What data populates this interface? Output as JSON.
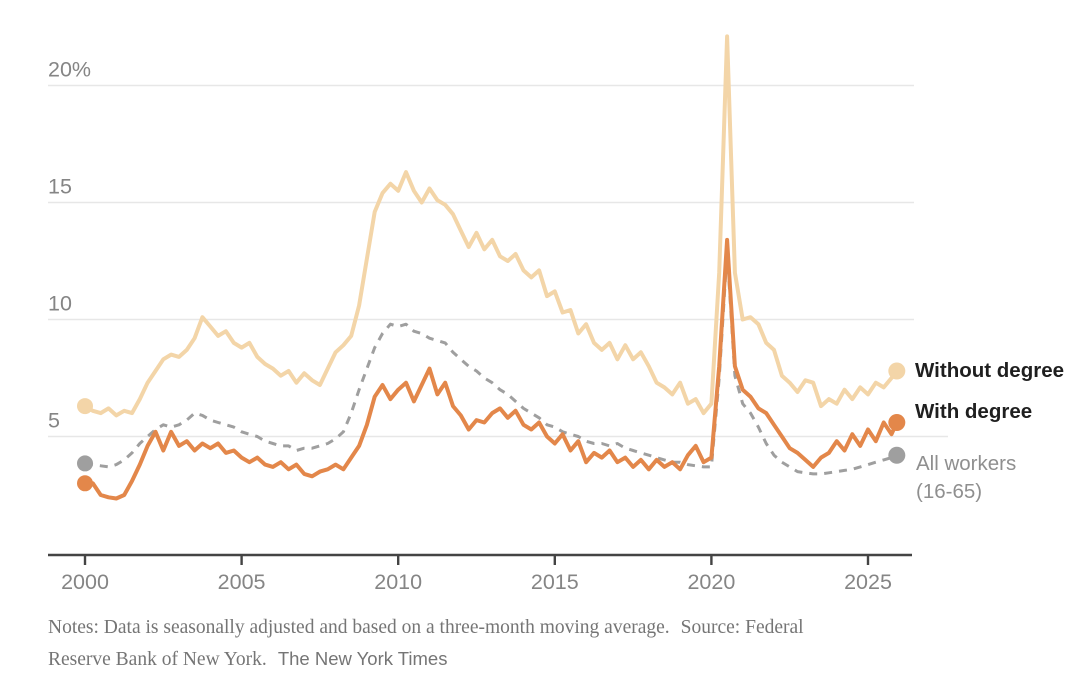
{
  "chart_data": {
    "type": "line",
    "title": "",
    "y_unit": "%",
    "grid": "horizontal",
    "legend_position": "right",
    "x_range": [
      2000,
      2025.92
    ],
    "y_range": [
      0,
      22.5
    ],
    "x_ticks": [
      {
        "value": 2000,
        "label": "2000"
      },
      {
        "value": 2005,
        "label": "2005"
      },
      {
        "value": 2010,
        "label": "2010"
      },
      {
        "value": 2015,
        "label": "2015"
      },
      {
        "value": 2020,
        "label": "2020"
      },
      {
        "value": 2025,
        "label": "2025"
      }
    ],
    "y_ticks": [
      {
        "value": 5,
        "label": "5"
      },
      {
        "value": 10,
        "label": "10"
      },
      {
        "value": 15,
        "label": "15"
      },
      {
        "value": 20,
        "label": "20%"
      }
    ],
    "x": [
      2000,
      2000.25,
      2000.5,
      2000.75,
      2001,
      2001.25,
      2001.5,
      2001.75,
      2002,
      2002.25,
      2002.5,
      2002.75,
      2003,
      2003.25,
      2003.5,
      2003.75,
      2004,
      2004.25,
      2004.5,
      2004.75,
      2005,
      2005.25,
      2005.5,
      2005.75,
      2006,
      2006.25,
      2006.5,
      2006.75,
      2007,
      2007.25,
      2007.5,
      2007.75,
      2008,
      2008.25,
      2008.5,
      2008.75,
      2009,
      2009.25,
      2009.5,
      2009.75,
      2010,
      2010.25,
      2010.5,
      2010.75,
      2011,
      2011.25,
      2011.5,
      2011.75,
      2012,
      2012.25,
      2012.5,
      2012.75,
      2013,
      2013.25,
      2013.5,
      2013.75,
      2014,
      2014.25,
      2014.5,
      2014.75,
      2015,
      2015.25,
      2015.5,
      2015.75,
      2016,
      2016.25,
      2016.5,
      2016.75,
      2017,
      2017.25,
      2017.5,
      2017.75,
      2018,
      2018.25,
      2018.5,
      2018.75,
      2019,
      2019.25,
      2019.5,
      2019.75,
      2020,
      2020.25,
      2020.5,
      2020.75,
      2021,
      2021.25,
      2021.5,
      2021.75,
      2022,
      2022.25,
      2022.5,
      2022.75,
      2023,
      2023.25,
      2023.5,
      2023.75,
      2024,
      2024.25,
      2024.5,
      2024.75,
      2025,
      2025.25,
      2025.5,
      2025.75,
      2025.92
    ],
    "series": [
      {
        "name": "Without degree",
        "legend_lines": [
          "Without degree"
        ],
        "color": "#f3d5a8",
        "line_style": "solid",
        "line_width": 4,
        "values": [
          6.3,
          6.1,
          6.0,
          6.2,
          5.9,
          6.1,
          6.0,
          6.6,
          7.3,
          7.8,
          8.3,
          8.5,
          8.4,
          8.7,
          9.2,
          10.1,
          9.7,
          9.3,
          9.5,
          9.0,
          8.8,
          9.0,
          8.4,
          8.1,
          7.9,
          7.6,
          7.8,
          7.3,
          7.7,
          7.4,
          7.2,
          7.9,
          8.6,
          8.9,
          9.3,
          10.6,
          12.6,
          14.6,
          15.4,
          15.8,
          15.5,
          16.3,
          15.5,
          15.0,
          15.6,
          15.1,
          14.9,
          14.5,
          13.8,
          13.1,
          13.7,
          13.0,
          13.4,
          12.7,
          12.5,
          12.8,
          12.1,
          11.8,
          12.1,
          11.0,
          11.2,
          10.3,
          10.4,
          9.4,
          9.8,
          9.0,
          8.7,
          9.0,
          8.3,
          8.9,
          8.3,
          8.6,
          8.0,
          7.3,
          7.1,
          6.8,
          7.3,
          6.4,
          6.6,
          6.0,
          6.4,
          12.0,
          22.1,
          12.0,
          10.0,
          10.1,
          9.8,
          9.0,
          8.7,
          7.6,
          7.3,
          6.9,
          7.4,
          7.3,
          6.3,
          6.6,
          6.4,
          7.0,
          6.6,
          7.1,
          6.8,
          7.3,
          7.1,
          7.5,
          7.8
        ]
      },
      {
        "name": "With degree",
        "legend_lines": [
          "With degree"
        ],
        "color": "#e3874a",
        "line_style": "solid",
        "line_width": 4,
        "values": [
          3.0,
          3.0,
          2.5,
          2.4,
          2.35,
          2.5,
          3.1,
          3.8,
          4.6,
          5.2,
          4.4,
          5.2,
          4.6,
          4.8,
          4.4,
          4.7,
          4.5,
          4.7,
          4.3,
          4.4,
          4.1,
          3.9,
          4.1,
          3.8,
          3.7,
          3.9,
          3.6,
          3.8,
          3.4,
          3.3,
          3.5,
          3.6,
          3.8,
          3.6,
          4.1,
          4.6,
          5.5,
          6.7,
          7.2,
          6.6,
          7.0,
          7.3,
          6.5,
          7.2,
          7.9,
          6.8,
          7.3,
          6.3,
          5.9,
          5.3,
          5.7,
          5.6,
          6.0,
          6.2,
          5.8,
          6.1,
          5.5,
          5.3,
          5.6,
          5.0,
          4.7,
          5.1,
          4.4,
          4.8,
          3.9,
          4.3,
          4.1,
          4.4,
          3.9,
          4.1,
          3.7,
          4.0,
          3.6,
          4.0,
          3.7,
          3.9,
          3.6,
          4.2,
          4.6,
          3.9,
          4.1,
          8.0,
          13.4,
          8.0,
          7.0,
          6.7,
          6.2,
          6.0,
          5.5,
          5.0,
          4.5,
          4.3,
          4.0,
          3.7,
          4.1,
          4.3,
          4.8,
          4.4,
          5.1,
          4.6,
          5.3,
          4.8,
          5.6,
          5.1,
          5.6
        ]
      },
      {
        "name": "All workers (16-65)",
        "legend_lines": [
          "All workers",
          "(16-65)"
        ],
        "color": "#9f9f9f",
        "line_style": "dashed",
        "line_width": 3,
        "values": [
          3.85,
          3.8,
          3.75,
          3.7,
          3.8,
          4.0,
          4.3,
          4.7,
          5.0,
          5.3,
          5.5,
          5.4,
          5.5,
          5.7,
          6.0,
          5.9,
          5.7,
          5.6,
          5.5,
          5.4,
          5.2,
          5.1,
          5.0,
          4.8,
          4.7,
          4.6,
          4.6,
          4.4,
          4.5,
          4.5,
          4.6,
          4.7,
          4.9,
          5.2,
          6.0,
          7.0,
          7.9,
          8.8,
          9.4,
          9.8,
          9.7,
          9.8,
          9.5,
          9.4,
          9.2,
          9.1,
          9.0,
          8.6,
          8.3,
          8.0,
          7.8,
          7.5,
          7.3,
          7.0,
          6.8,
          6.5,
          6.2,
          6.0,
          5.8,
          5.5,
          5.4,
          5.2,
          5.1,
          5.0,
          4.8,
          4.7,
          4.7,
          4.6,
          4.7,
          4.5,
          4.4,
          4.3,
          4.2,
          4.1,
          4.0,
          3.9,
          3.9,
          3.8,
          3.75,
          3.7,
          3.7,
          7.5,
          12.9,
          7.6,
          6.4,
          6.0,
          5.4,
          4.7,
          4.2,
          3.9,
          3.7,
          3.5,
          3.45,
          3.4,
          3.4,
          3.45,
          3.5,
          3.55,
          3.6,
          3.7,
          3.8,
          3.9,
          4.0,
          4.1,
          4.2
        ]
      }
    ]
  },
  "colors": {
    "gridline": "#e7e7e7",
    "axis": "#444444",
    "tick_text": "#858585",
    "legend_dark": "#1f1f1f",
    "legend_muted": "#8f8f8f",
    "notes_text": "#757575"
  },
  "notes": {
    "line1a": "Notes: Data is seasonally adjusted and based on a three-month moving average.",
    "line1b": "Source: Federal",
    "line2a": "Reserve Bank of New York.",
    "credit": "The New York Times"
  }
}
